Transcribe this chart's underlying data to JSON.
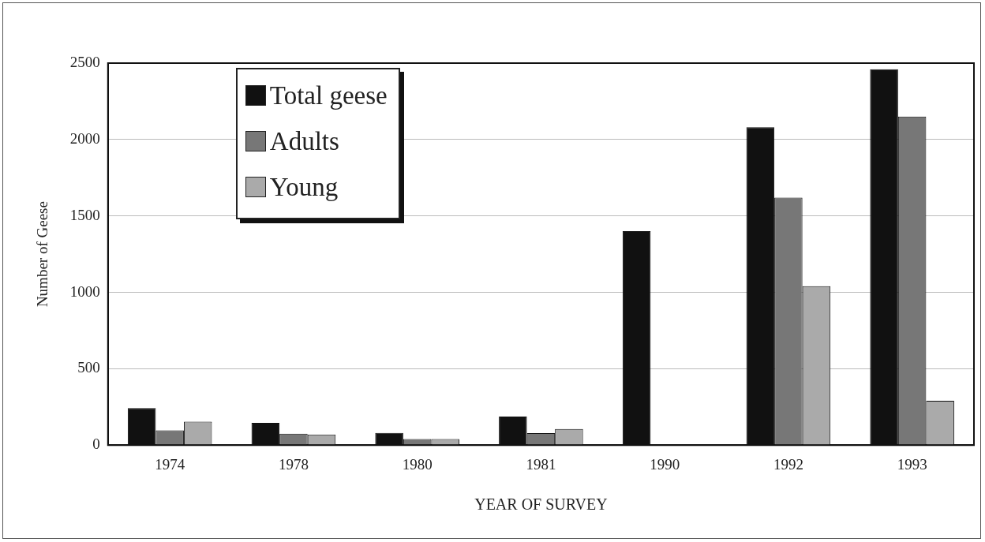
{
  "chart_data": {
    "type": "bar",
    "xlabel": "YEAR OF SURVEY",
    "ylabel": "Number of Geese",
    "categories": [
      "1974",
      "1978",
      "1980",
      "1981",
      "1990",
      "1992",
      "1993"
    ],
    "series": [
      {
        "name": "Total geese",
        "color": "#111111",
        "values": [
          243,
          146,
          80,
          187,
          1400,
          2080,
          2460
        ]
      },
      {
        "name": "Adults",
        "color": "#777777",
        "values": [
          96,
          74,
          40,
          79,
          null,
          1620,
          2150
        ]
      },
      {
        "name": "Young",
        "color": "#aaaaaa",
        "values": [
          153,
          69,
          40,
          105,
          null,
          1040,
          290
        ]
      }
    ],
    "ylim": [
      0,
      2500
    ],
    "yticks": [
      0,
      500,
      1000,
      1500,
      2000,
      2500
    ],
    "grid": "y",
    "legend": "top left"
  }
}
